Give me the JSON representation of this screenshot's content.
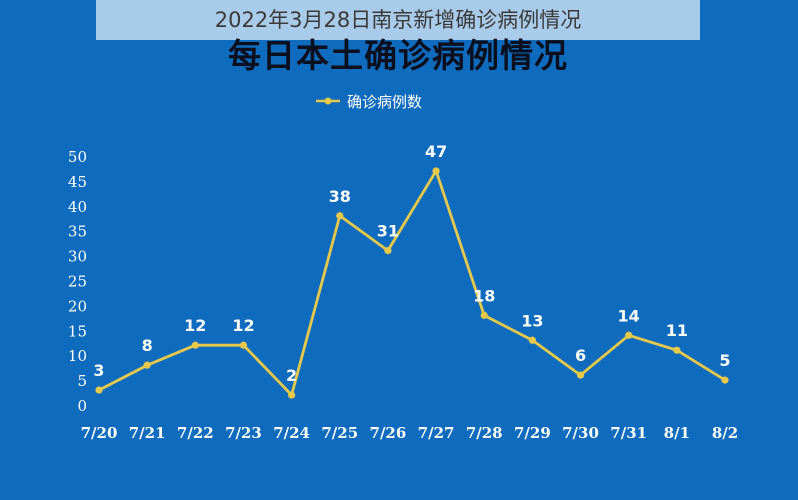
{
  "caption": "2022年3月28日南京新增确诊病例情况",
  "chart_data": {
    "type": "line",
    "title": "每日本土确诊病例情况",
    "xlabel": "",
    "ylabel": "",
    "categories": [
      "7/20",
      "7/21",
      "7/22",
      "7/23",
      "7/24",
      "7/25",
      "7/26",
      "7/27",
      "7/28",
      "7/29",
      "7/30",
      "7/31",
      "8/1",
      "8/2"
    ],
    "series": [
      {
        "name": "确诊病例数",
        "values": [
          3,
          8,
          12,
          12,
          2,
          38,
          31,
          47,
          18,
          13,
          6,
          14,
          11,
          5
        ]
      }
    ],
    "ylim": [
      0,
      50
    ],
    "yticks": [
      0,
      5,
      10,
      15,
      20,
      25,
      30,
      35,
      40,
      45,
      50
    ],
    "grid": false,
    "legend_position": "top-center",
    "colors": {
      "background": "#0f6bbd",
      "line": "#e6c94a",
      "text": "#ffffff",
      "title": "#0a0f1e"
    }
  }
}
